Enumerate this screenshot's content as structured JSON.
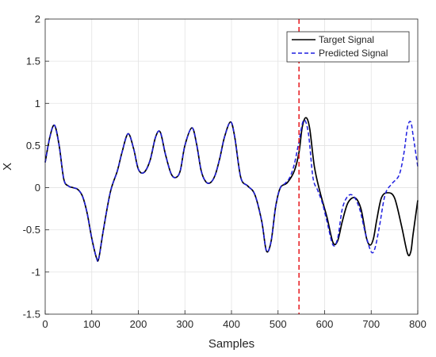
{
  "chart_data": {
    "type": "line",
    "xlabel": "Samples",
    "ylabel": "X",
    "xlim": [
      0,
      800
    ],
    "ylim": [
      -1.5,
      2
    ],
    "x_ticks": [
      0,
      100,
      200,
      300,
      400,
      500,
      600,
      700,
      800
    ],
    "y_ticks": [
      -1.5,
      -1,
      -0.5,
      0,
      0.5,
      1,
      1.5,
      2
    ],
    "x_tick_labels": [
      "0",
      "100",
      "200",
      "300",
      "400",
      "500",
      "600",
      "700",
      "800"
    ],
    "y_tick_labels": [
      "-1.5",
      "-1",
      "-0.5",
      "0",
      "0.5",
      "1",
      "1.5",
      "2"
    ],
    "grid": true,
    "legend_position": "top-right",
    "vertical_marker": {
      "x": 545,
      "color": "#e8262b",
      "style": "dashed"
    },
    "series": [
      {
        "name": "Target Signal",
        "color": "#000000",
        "style": "solid",
        "x": [
          0,
          10,
          20,
          30,
          40,
          50,
          60,
          70,
          80,
          90,
          100,
          110,
          115,
          125,
          140,
          155,
          165,
          178,
          190,
          200,
          212,
          225,
          237,
          247,
          258,
          270,
          280,
          290,
          300,
          315,
          325,
          335,
          345,
          355,
          365,
          375,
          385,
          398,
          407,
          420,
          435,
          450,
          465,
          475,
          485,
          495,
          505,
          520,
          535,
          545,
          552,
          560,
          568,
          578,
          590,
          605,
          618,
          628,
          638,
          650,
          665,
          678,
          690,
          698,
          705,
          712,
          722,
          735,
          750,
          765,
          778,
          785,
          790,
          800
        ],
        "values": [
          0.3,
          0.6,
          0.74,
          0.5,
          0.1,
          0.02,
          0,
          -0.02,
          -0.1,
          -0.3,
          -0.6,
          -0.83,
          -0.84,
          -0.5,
          -0.05,
          0.2,
          0.42,
          0.64,
          0.46,
          0.22,
          0.18,
          0.32,
          0.6,
          0.66,
          0.4,
          0.17,
          0.12,
          0.2,
          0.5,
          0.71,
          0.52,
          0.2,
          0.07,
          0.06,
          0.15,
          0.35,
          0.6,
          0.78,
          0.6,
          0.12,
          0.02,
          -0.08,
          -0.4,
          -0.75,
          -0.64,
          -0.22,
          0,
          0.06,
          0.2,
          0.42,
          0.72,
          0.83,
          0.7,
          0.25,
          -0.05,
          -0.35,
          -0.65,
          -0.63,
          -0.4,
          -0.18,
          -0.12,
          -0.25,
          -0.6,
          -0.68,
          -0.6,
          -0.38,
          -0.12,
          -0.06,
          -0.12,
          -0.45,
          -0.78,
          -0.76,
          -0.55,
          -0.15
        ]
      },
      {
        "name": "Predicted Signal",
        "color": "#1f1fe0",
        "style": "dashed",
        "x": [
          0,
          10,
          20,
          30,
          40,
          50,
          60,
          70,
          80,
          90,
          100,
          110,
          115,
          125,
          140,
          155,
          165,
          178,
          190,
          200,
          212,
          225,
          237,
          247,
          258,
          270,
          280,
          290,
          300,
          315,
          325,
          335,
          345,
          355,
          365,
          375,
          385,
          398,
          407,
          420,
          435,
          450,
          465,
          475,
          485,
          495,
          505,
          515,
          525,
          535,
          545,
          555,
          565,
          575,
          585,
          595,
          605,
          618,
          628,
          638,
          650,
          662,
          675,
          688,
          700,
          708,
          718,
          730,
          745,
          760,
          770,
          778,
          785,
          790,
          800
        ],
        "values": [
          0.3,
          0.6,
          0.74,
          0.5,
          0.1,
          0.02,
          0,
          -0.02,
          -0.1,
          -0.3,
          -0.6,
          -0.83,
          -0.84,
          -0.5,
          -0.05,
          0.2,
          0.42,
          0.64,
          0.46,
          0.22,
          0.18,
          0.32,
          0.6,
          0.66,
          0.4,
          0.17,
          0.12,
          0.2,
          0.5,
          0.71,
          0.52,
          0.2,
          0.07,
          0.06,
          0.15,
          0.35,
          0.6,
          0.78,
          0.6,
          0.12,
          0.02,
          -0.08,
          -0.4,
          -0.75,
          -0.64,
          -0.22,
          0,
          0.05,
          0.12,
          0.28,
          0.55,
          0.8,
          0.65,
          0.12,
          -0.03,
          -0.18,
          -0.4,
          -0.68,
          -0.6,
          -0.25,
          -0.1,
          -0.1,
          -0.25,
          -0.55,
          -0.76,
          -0.72,
          -0.45,
          -0.08,
          0.05,
          0.15,
          0.4,
          0.72,
          0.78,
          0.62,
          0.25
        ]
      }
    ]
  }
}
